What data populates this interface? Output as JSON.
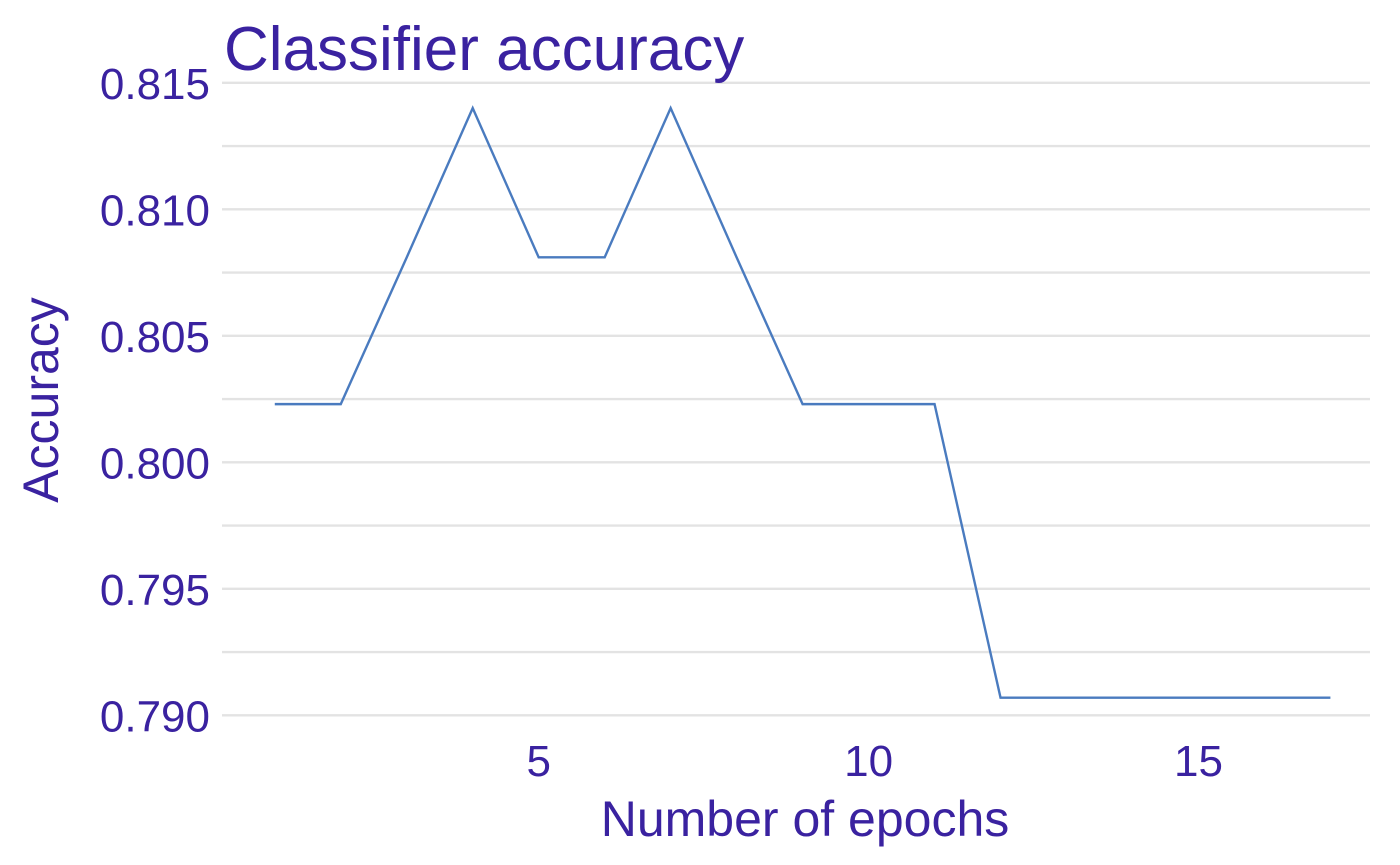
{
  "chart_data": {
    "type": "line",
    "title": "Classifier accuracy",
    "xlabel": "Number of epochs",
    "ylabel": "Accuracy",
    "x": [
      1,
      2,
      3,
      4,
      5,
      6,
      7,
      8,
      9,
      10,
      11,
      12,
      13,
      14,
      15,
      16,
      17
    ],
    "series": [
      {
        "values": [
          0.8023,
          0.8023,
          0.8081,
          0.814,
          0.8081,
          0.8081,
          0.814,
          0.8081,
          0.8023,
          0.8023,
          0.8023,
          0.7907,
          0.7907,
          0.7907,
          0.7907,
          0.7907,
          0.7907
        ]
      }
    ],
    "xticks": [
      5,
      10,
      15
    ],
    "xtick_labels": [
      "5",
      "10",
      "15"
    ],
    "yticks": [
      0.79,
      0.795,
      0.8,
      0.805,
      0.81,
      0.815
    ],
    "ytick_labels": [
      "0.790",
      "0.795",
      "0.800",
      "0.805",
      "0.810",
      "0.815"
    ],
    "xlim": [
      0.2,
      17.6
    ],
    "ylim": [
      0.7895,
      0.8159
    ],
    "grid": "horizontal only",
    "legend": "none",
    "colors": {
      "text": "#3a22a0",
      "line": "#4a7bbf",
      "grid": "#e3e3e3"
    }
  }
}
